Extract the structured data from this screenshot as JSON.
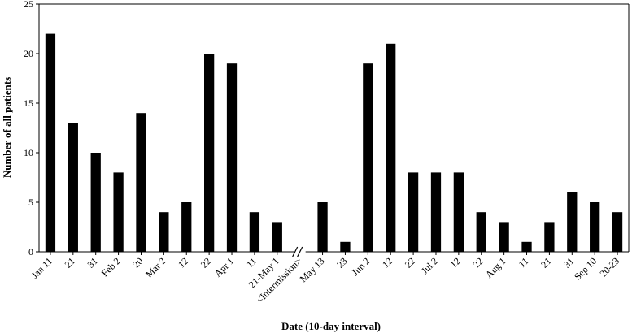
{
  "chart_data": {
    "type": "bar",
    "xlabel": "Date (10-day interval)",
    "ylabel": "Number of all patients",
    "ylim": [
      0,
      25
    ],
    "yticks": [
      0,
      5,
      10,
      15,
      20,
      25
    ],
    "grid": false,
    "categories": [
      "Jan 11",
      "21",
      "31",
      "Feb 2",
      "20",
      "Mar 2",
      "12",
      "22",
      "Apr 1",
      "11",
      "21-May 1",
      "<Intermission>",
      "May 13",
      "23",
      "Jun 2",
      "12",
      "22",
      "Jul 2",
      "12",
      "22",
      "Aug 1",
      "11",
      "21",
      "31",
      "Sep 10",
      "20-23"
    ],
    "values": [
      22,
      13,
      10,
      8,
      14,
      4,
      5,
      20,
      19,
      4,
      3,
      null,
      5,
      1,
      19,
      21,
      8,
      8,
      8,
      4,
      3,
      1,
      3,
      6,
      5,
      4
    ],
    "axis_break_marker": "//",
    "bar_color": "#000000"
  }
}
